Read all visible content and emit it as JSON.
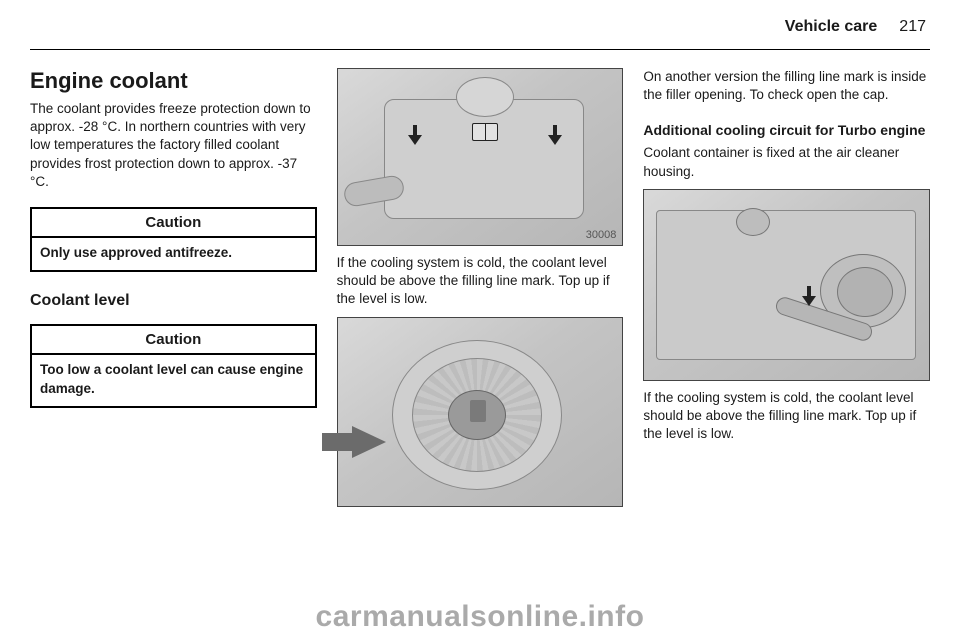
{
  "header": {
    "chapter": "Vehicle care",
    "page_number": "217"
  },
  "col1": {
    "heading": "Engine coolant",
    "intro": "The coolant provides freeze protection down to approx. -28 °C. In northern countries with very low temperatures the factory filled coolant provides frost protection down to approx. -37 °C.",
    "caution1_title": "Caution",
    "caution1_body": "Only use approved antifreeze.",
    "sub_heading": "Coolant level",
    "caution2_title": "Caution",
    "caution2_body": "Too low a coolant level can cause engine damage."
  },
  "col2": {
    "img1_number": "30008",
    "para1": "If the cooling system is cold, the coolant level should be above the filling line mark. Top up if the level is low."
  },
  "col3": {
    "para1": "On another version the filling line mark is inside the filler opening. To check open the cap.",
    "sub_heading": "Additional cooling circuit for Turbo engine",
    "para2": "Coolant container is fixed at the air cleaner housing.",
    "para3": "If the cooling system is cold, the coolant level should be above the filling line mark. Top up if the level is low."
  },
  "watermark": "carmanualsonline.info",
  "colors": {
    "text": "#1a1a1a",
    "border": "#000000",
    "img_bg": "#cfcfcf"
  }
}
